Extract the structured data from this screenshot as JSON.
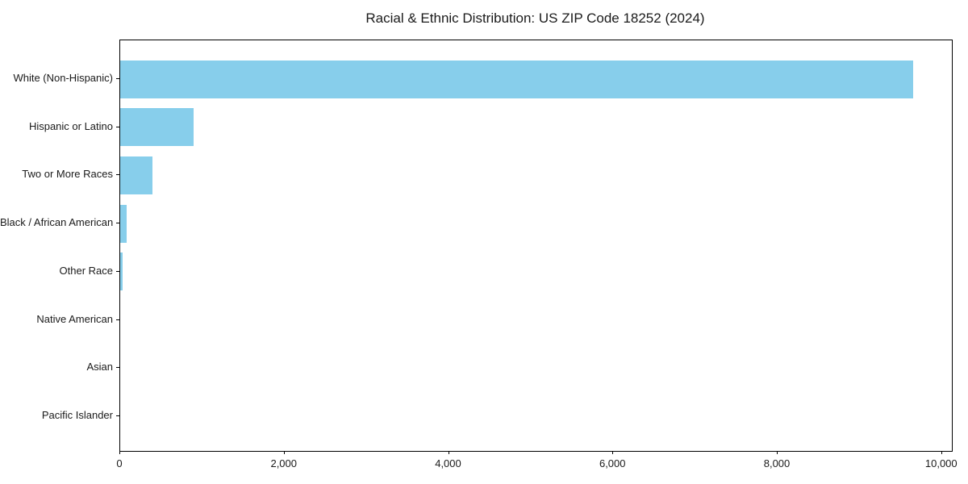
{
  "chart_data": {
    "type": "bar",
    "orientation": "horizontal",
    "title": "Racial & Ethnic Distribution: US ZIP Code 18252 (2024)",
    "categories": [
      "White (Non-Hispanic)",
      "Hispanic or Latino",
      "Two or More Races",
      "Black / African American",
      "Other Race",
      "Native American",
      "Asian",
      "Pacific Islander"
    ],
    "values": [
      9650,
      890,
      390,
      78,
      30,
      0,
      0,
      0
    ],
    "xlabel": "",
    "ylabel": "",
    "xlim": [
      0,
      10120
    ],
    "x_ticks": [
      {
        "value": 0,
        "label": "0"
      },
      {
        "value": 2000,
        "label": "2,000"
      },
      {
        "value": 4000,
        "label": "4,000"
      },
      {
        "value": 6000,
        "label": "6,000"
      },
      {
        "value": 8000,
        "label": "8,000"
      },
      {
        "value": 10000,
        "label": "10,000"
      }
    ],
    "grid": false,
    "legend_position": "none",
    "colors": {
      "bar": "#87CEEB",
      "spine": "#000000",
      "text": "#1a1a1a",
      "background": "#ffffff"
    }
  }
}
